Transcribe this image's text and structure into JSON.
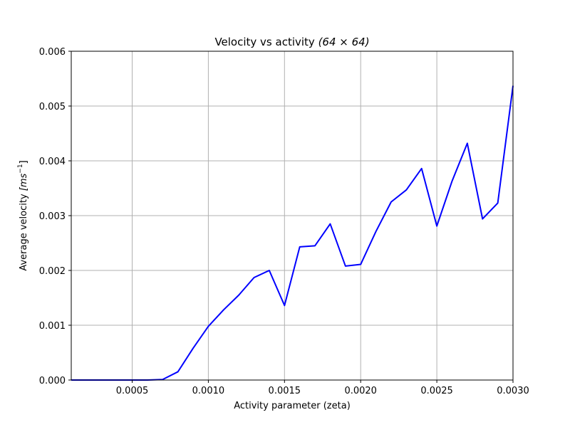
{
  "chart_data": {
    "type": "line",
    "title": "Velocity vs activity ",
    "title_math": "(64 × 64)",
    "xlabel": "Activity parameter (zeta)",
    "ylabel": "Average velocity ",
    "ylabel_math": "[ms",
    "ylabel_exp": "−1",
    "ylabel_end": "]",
    "xlim": [
      0.0001,
      0.003
    ],
    "ylim": [
      0,
      0.006
    ],
    "xticks": [
      0.0005,
      0.001,
      0.0015,
      0.002,
      0.0025,
      0.003
    ],
    "xtick_labels": [
      "0.0005",
      "0.0010",
      "0.0015",
      "0.0020",
      "0.0025",
      "0.0030"
    ],
    "yticks": [
      0,
      0.001,
      0.002,
      0.003,
      0.004,
      0.005,
      0.006
    ],
    "ytick_labels": [
      "0.000",
      "0.001",
      "0.002",
      "0.003",
      "0.004",
      "0.005",
      "0.006"
    ],
    "grid": true,
    "series": [
      {
        "color": "#0000ff",
        "x": [
          0.0001,
          0.0002,
          0.0003,
          0.0004,
          0.0005,
          0.0006,
          0.0007,
          0.0008,
          0.0009,
          0.001,
          0.0011,
          0.0012,
          0.0013,
          0.0014,
          0.0015,
          0.0016,
          0.0017,
          0.0018,
          0.0019,
          0.002,
          0.0021,
          0.0022,
          0.0023,
          0.0024,
          0.0025,
          0.0026,
          0.0027,
          0.0028,
          0.0029,
          0.003
        ],
        "y": [
          0.0,
          0.0,
          0.0,
          0.0,
          0.0,
          0.0,
          1e-05,
          0.00015,
          0.00058,
          0.00098,
          0.00128,
          0.00155,
          0.00187,
          0.002,
          0.00136,
          0.00243,
          0.00245,
          0.00285,
          0.00208,
          0.00211,
          0.00271,
          0.00325,
          0.00347,
          0.00386,
          0.00281,
          0.00363,
          0.00432,
          0.00294,
          0.00323,
          0.00537
        ]
      }
    ]
  }
}
